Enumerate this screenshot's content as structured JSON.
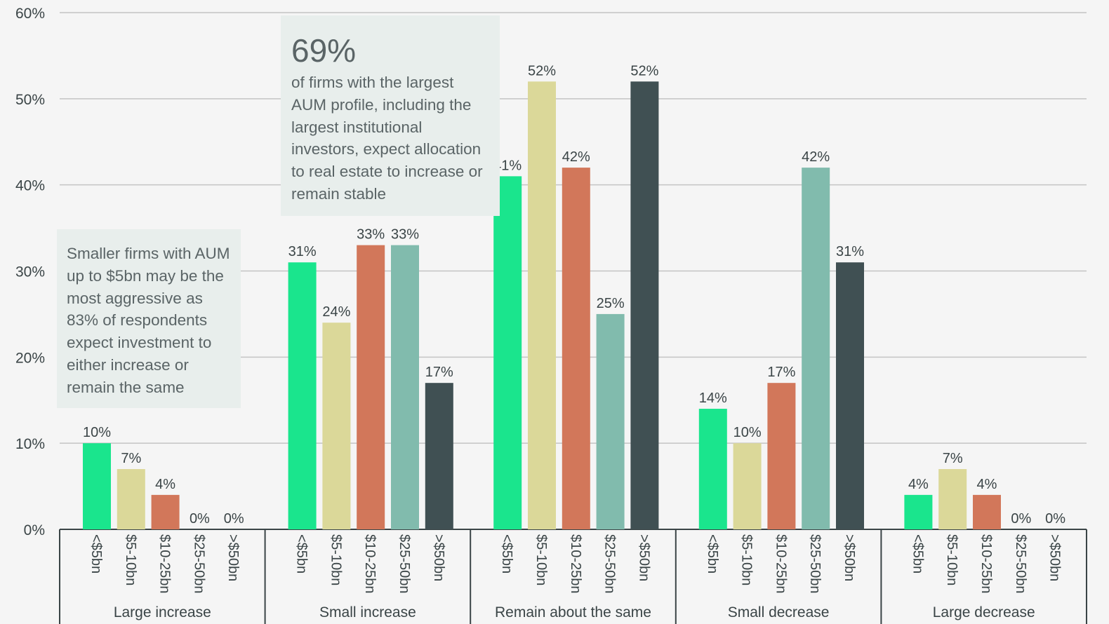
{
  "chart_data": {
    "type": "bar",
    "groups": [
      "Large increase",
      "Small increase",
      "Remain about the same",
      "Small decrease",
      "Large decrease"
    ],
    "categories": [
      "<$5bn",
      "$5-10bn",
      "$10-25bn",
      "$25-50bn",
      ">$50bn"
    ],
    "series": [
      {
        "name": "<$5bn",
        "color": "#1ae58d",
        "values": [
          10,
          31,
          41,
          14,
          4
        ]
      },
      {
        "name": "$5-10bn",
        "color": "#dbd899",
        "values": [
          7,
          24,
          52,
          10,
          7
        ]
      },
      {
        "name": "$10-25bn",
        "color": "#d2775a",
        "values": [
          4,
          33,
          42,
          17,
          4
        ]
      },
      {
        "name": "$25-50bn",
        "color": "#81bbad",
        "values": [
          0,
          33,
          25,
          42,
          0
        ]
      },
      {
        "name": ">$50bn",
        "color": "#405053",
        "values": [
          0,
          17,
          52,
          31,
          0
        ]
      }
    ],
    "ylim": [
      0,
      60
    ],
    "yticks": [
      "0%",
      "10%",
      "20%",
      "30%",
      "40%",
      "50%",
      "60%"
    ],
    "value_suffix": "%",
    "grid": true,
    "title": "",
    "xlabel": "",
    "ylabel": ""
  },
  "annotations": {
    "highlight": {
      "stat": "69%",
      "text": "of firms with the largest AUM profile, including the largest institutional investors, expect allocation to real estate to increase or remain stable"
    },
    "small_firms": {
      "text": "Smaller firms with AUM up to $5bn may be the most aggressive as 83% of respondents expect investment to either increase or remain the same"
    }
  }
}
